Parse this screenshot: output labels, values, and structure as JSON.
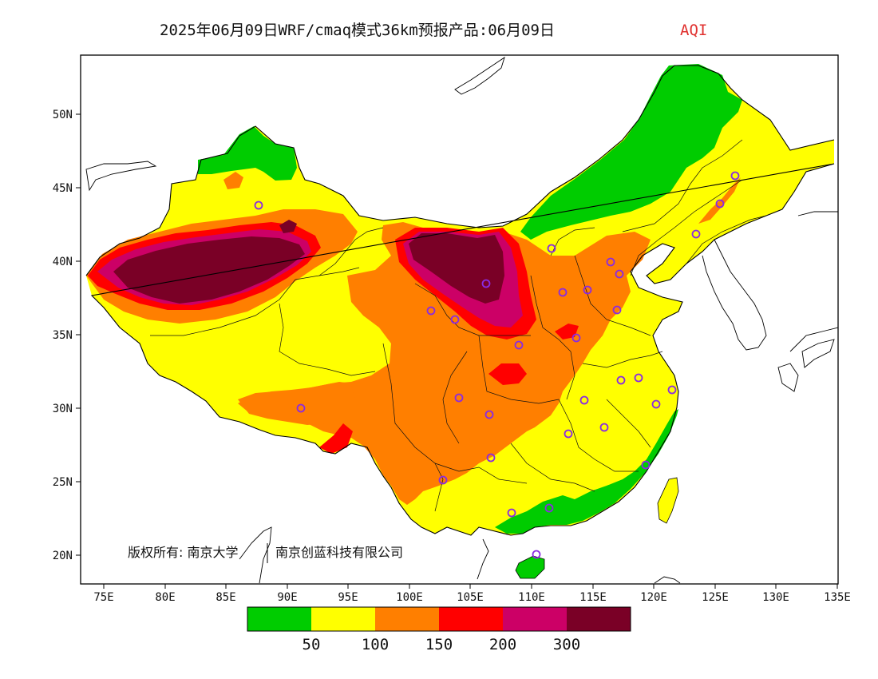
{
  "title": {
    "main": "2025年06月09日WRF/cmaq模式36km预报产品:06月09日",
    "variable": "AQI"
  },
  "axes": {
    "lon_range": [
      73,
      135
    ],
    "lat_range": [
      18,
      54
    ],
    "x_ticks": [
      "75E",
      "80E",
      "85E",
      "90E",
      "95E",
      "100E",
      "105E",
      "110E",
      "115E",
      "120E",
      "125E",
      "130E",
      "135E"
    ],
    "y_ticks": [
      "20N",
      "25N",
      "30N",
      "35N",
      "40N",
      "45N",
      "50N"
    ]
  },
  "copyright": {
    "part1": "版权所有: 南京大学",
    "part2": "南京创蓝科技有限公司"
  },
  "legend": {
    "colors": [
      "#00cc00",
      "#ffff00",
      "#ff7f00",
      "#ff0000",
      "#cc0066",
      "#7a0026"
    ],
    "labels": [
      "50",
      "100",
      "150",
      "200",
      "300"
    ]
  },
  "colors": {
    "good": "#00cc00",
    "moderate": "#ffff00",
    "usg": "#ff7f00",
    "unhealthy": "#ff0000",
    "very_unhealthy": "#cc0066",
    "hazardous": "#7a0026",
    "station": "#8a2be2"
  }
}
